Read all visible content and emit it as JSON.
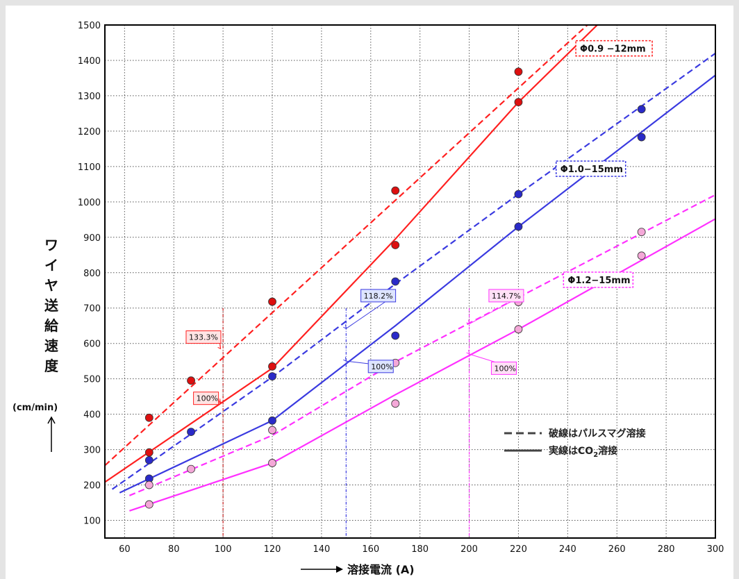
{
  "chart_data": {
    "type": "line",
    "xlabel": "溶接電流 (A)",
    "ylabel_chars": [
      "ワ",
      "イ",
      "ヤ",
      "送",
      "給",
      "速",
      "度"
    ],
    "yunit": "(cm/min)",
    "xlim": [
      52,
      300
    ],
    "ylim": [
      50,
      1500
    ],
    "xticks": [
      60,
      80,
      100,
      120,
      140,
      160,
      180,
      200,
      220,
      240,
      260,
      280,
      300
    ],
    "yticks": [
      100,
      200,
      300,
      400,
      500,
      600,
      700,
      800,
      900,
      1000,
      1100,
      1200,
      1300,
      1400,
      1500
    ],
    "grid": true,
    "legend": {
      "dashed": {
        "pre": "破線は",
        "bold": "パルスマグ溶接",
        "sub": ""
      },
      "solid": {
        "pre": "実線は",
        "bold": "CO",
        "sub": "2",
        "post": "溶接"
      }
    },
    "series": [
      {
        "name": "Φ0.9 −12mm",
        "style": "dashed",
        "color": "#ff2020",
        "line": [
          [
            52,
            255
          ],
          [
            248,
            1500
          ]
        ],
        "points": [
          [
            70,
            390
          ],
          [
            87,
            495
          ],
          [
            120,
            718
          ],
          [
            170,
            1032
          ],
          [
            220,
            1368
          ]
        ],
        "point_color": "#dd1010"
      },
      {
        "name": "Φ0.9 −12mm",
        "style": "solid",
        "color": "#ff2020",
        "line": [
          [
            52,
            208
          ],
          [
            120,
            530
          ],
          [
            170,
            895
          ],
          [
            220,
            1282
          ],
          [
            252,
            1500
          ]
        ],
        "points": [
          [
            70,
            292
          ],
          [
            120,
            535
          ],
          [
            170,
            878
          ],
          [
            220,
            1282
          ]
        ],
        "point_color": "#dd1010"
      },
      {
        "name": "Φ1.0−15mm",
        "style": "dashed",
        "color": "#3a3ae0",
        "line": [
          [
            55,
            188
          ],
          [
            120,
            505
          ],
          [
            170,
            768
          ],
          [
            220,
            1022
          ],
          [
            300,
            1420
          ]
        ],
        "points": [
          [
            70,
            270
          ],
          [
            87,
            350
          ],
          [
            120,
            507
          ],
          [
            170,
            775
          ],
          [
            220,
            1022
          ],
          [
            270,
            1262
          ]
        ],
        "point_color": "#2a2ac8"
      },
      {
        "name": "Φ1.0−15mm",
        "style": "solid",
        "color": "#3a3ae0",
        "line": [
          [
            58,
            178
          ],
          [
            120,
            382
          ],
          [
            170,
            650
          ],
          [
            220,
            930
          ],
          [
            300,
            1358
          ]
        ],
        "points": [
          [
            70,
            218
          ],
          [
            120,
            382
          ],
          [
            170,
            622
          ],
          [
            220,
            930
          ],
          [
            270,
            1183
          ]
        ],
        "point_color": "#2a2ac8"
      },
      {
        "name": "Φ1.2−15mm",
        "style": "dashed",
        "color": "#ff30ff",
        "line": [
          [
            62,
            170
          ],
          [
            120,
            340
          ],
          [
            170,
            548
          ],
          [
            220,
            730
          ],
          [
            300,
            1020
          ]
        ],
        "points": [
          [
            70,
            200
          ],
          [
            87,
            245
          ],
          [
            120,
            355
          ],
          [
            170,
            545
          ],
          [
            220,
            717
          ],
          [
            270,
            915
          ]
        ],
        "point_color": "#f4a8d8"
      },
      {
        "name": "Φ1.2−15mm",
        "style": "solid",
        "color": "#ff30ff",
        "line": [
          [
            62,
            127
          ],
          [
            120,
            262
          ],
          [
            170,
            455
          ],
          [
            220,
            640
          ],
          [
            300,
            952
          ]
        ],
        "points": [
          [
            70,
            145
          ],
          [
            120,
            262
          ],
          [
            170,
            430
          ],
          [
            220,
            640
          ],
          [
            270,
            848
          ]
        ],
        "point_color": "#f4a8d8"
      }
    ],
    "series_labels": [
      {
        "text": "Φ0.9 −12mm",
        "color": "#ff2020",
        "x": 245,
        "y": 1430
      },
      {
        "text": "Φ1.0−15mm",
        "color": "#3a3ae0",
        "x": 237,
        "y": 1090
      },
      {
        "text": "Φ1.2−15mm",
        "color": "#ff30ff",
        "x": 240,
        "y": 776
      }
    ],
    "vlines": [
      {
        "x": 100,
        "color": "#cc2020"
      },
      {
        "x": 150,
        "color": "#3a3ae0"
      },
      {
        "x": 200,
        "color": "#ff30ff"
      }
    ],
    "annotations": [
      {
        "text": "133.3%",
        "color": "#ff2020",
        "fill": "#ffe4e4",
        "x": 85,
        "y": 618,
        "tx": 99,
        "ty": 585
      },
      {
        "text": "100%",
        "color": "#ff2020",
        "fill": "#ffe4e4",
        "x": 88,
        "y": 445,
        "tx": 99,
        "ty": 432
      },
      {
        "text": "118.2%",
        "color": "#3a3ae0",
        "fill": "#dde4ff",
        "x": 156,
        "y": 735,
        "tx": 150,
        "ty": 642
      },
      {
        "text": "100%",
        "color": "#3a3ae0",
        "fill": "#dde4ff",
        "x": 159,
        "y": 535,
        "tx": 150,
        "ty": 550
      },
      {
        "text": "114.7%",
        "color": "#ff30ff",
        "fill": "#ffe0f6",
        "x": 208,
        "y": 735,
        "tx": 200,
        "ty": 655
      },
      {
        "text": "100%",
        "color": "#ff30ff",
        "fill": "#ffe0f6",
        "x": 209,
        "y": 530,
        "tx": 200,
        "ty": 570
      }
    ]
  }
}
